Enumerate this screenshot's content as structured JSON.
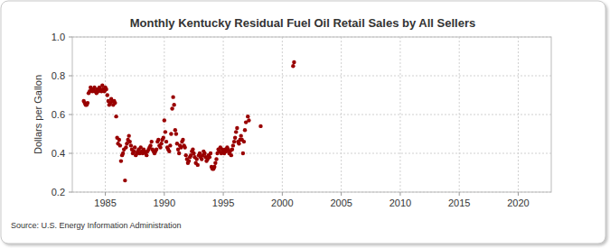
{
  "chart_data": {
    "type": "scatter",
    "title": "Monthly Kentucky Residual Fuel Oil Retail Sales by All Sellers",
    "y_label": "Dollars per Gallon",
    "source": "Source: U.S. Energy Information Administration",
    "color": "#990000",
    "marker": "circle",
    "grid": true,
    "xlim": [
      1982.2,
      2022.8
    ],
    "xticks": [
      1985,
      1990,
      1995,
      2000,
      2005,
      2010,
      2015,
      2020
    ],
    "ylim": [
      0.2,
      1.0
    ],
    "yticks": [
      0.2,
      0.4,
      0.6,
      0.8,
      {
        "value": 1,
        "label": "1.0"
      }
    ],
    "x": [
      1983.17,
      1983.25,
      1983.33,
      1983.42,
      1983.5,
      1983.58,
      1983.67,
      1983.75,
      1983.83,
      1983.92,
      1984.0,
      1984.08,
      1984.17,
      1984.25,
      1984.33,
      1984.42,
      1984.5,
      1984.58,
      1984.67,
      1984.75,
      1984.83,
      1984.92,
      1985.0,
      1985.08,
      1985.17,
      1985.25,
      1985.33,
      1985.42,
      1985.5,
      1985.58,
      1985.67,
      1985.75,
      1985.83,
      1985.92,
      1986.0,
      1986.08,
      1986.17,
      1986.25,
      1986.33,
      1986.42,
      1986.5,
      1986.58,
      1986.67,
      1986.75,
      1986.83,
      1986.92,
      1987.0,
      1987.08,
      1987.17,
      1987.25,
      1987.33,
      1987.42,
      1987.5,
      1987.58,
      1987.67,
      1987.75,
      1987.83,
      1987.92,
      1988.0,
      1988.08,
      1988.17,
      1988.25,
      1988.33,
      1988.42,
      1988.5,
      1988.58,
      1988.67,
      1988.75,
      1988.83,
      1988.92,
      1989.0,
      1989.08,
      1989.17,
      1989.25,
      1989.33,
      1989.42,
      1989.5,
      1989.58,
      1989.67,
      1989.75,
      1989.83,
      1989.92,
      1990.0,
      1990.08,
      1990.17,
      1990.25,
      1990.33,
      1990.42,
      1990.5,
      1990.58,
      1990.67,
      1990.75,
      1990.83,
      1990.92,
      1991.0,
      1991.08,
      1991.17,
      1991.25,
      1991.33,
      1991.42,
      1991.5,
      1991.58,
      1991.67,
      1991.75,
      1991.83,
      1991.92,
      1992.0,
      1992.08,
      1992.17,
      1992.25,
      1992.33,
      1992.42,
      1992.5,
      1992.58,
      1992.67,
      1992.75,
      1992.83,
      1992.92,
      1993.0,
      1993.08,
      1993.17,
      1993.25,
      1993.33,
      1993.42,
      1993.5,
      1993.58,
      1993.67,
      1993.75,
      1993.83,
      1993.92,
      1994.0,
      1994.08,
      1994.17,
      1994.25,
      1994.33,
      1994.42,
      1994.5,
      1994.58,
      1994.67,
      1994.75,
      1994.83,
      1994.92,
      1995.0,
      1995.08,
      1995.17,
      1995.25,
      1995.33,
      1995.42,
      1995.5,
      1995.58,
      1995.67,
      1995.75,
      1995.83,
      1995.92,
      1996.0,
      1996.08,
      1996.17,
      1996.25,
      1996.33,
      1996.42,
      1996.5,
      1996.58,
      1996.67,
      1996.75,
      1996.83,
      1996.92,
      1997.08,
      1997.17,
      1998.17,
      2000.92,
      2001.0
    ],
    "values": [
      0.67,
      0.66,
      0.65,
      0.65,
      0.66,
      0.71,
      0.72,
      0.74,
      0.73,
      0.72,
      0.73,
      0.74,
      0.72,
      0.71,
      0.73,
      0.72,
      0.74,
      0.73,
      0.72,
      0.75,
      0.73,
      0.72,
      0.74,
      0.73,
      0.7,
      0.67,
      0.65,
      0.66,
      0.68,
      0.67,
      0.65,
      0.67,
      0.66,
      0.59,
      0.48,
      0.45,
      0.47,
      0.44,
      0.36,
      0.39,
      0.4,
      0.42,
      0.26,
      0.43,
      0.45,
      0.47,
      0.49,
      0.46,
      0.44,
      0.42,
      0.4,
      0.41,
      0.43,
      0.39,
      0.4,
      0.41,
      0.42,
      0.4,
      0.43,
      0.41,
      0.4,
      0.42,
      0.41,
      0.4,
      0.39,
      0.41,
      0.42,
      0.43,
      0.44,
      0.46,
      0.42,
      0.41,
      0.4,
      0.41,
      0.42,
      0.46,
      0.47,
      0.44,
      0.43,
      0.45,
      0.47,
      0.48,
      0.57,
      0.51,
      0.46,
      0.43,
      0.42,
      0.41,
      0.44,
      0.5,
      0.63,
      0.69,
      0.65,
      0.52,
      0.5,
      0.45,
      0.42,
      0.4,
      0.44,
      0.43,
      0.46,
      0.47,
      0.44,
      0.43,
      0.39,
      0.37,
      0.35,
      0.36,
      0.38,
      0.39,
      0.41,
      0.42,
      0.4,
      0.38,
      0.35,
      0.37,
      0.34,
      0.39,
      0.4,
      0.38,
      0.37,
      0.39,
      0.41,
      0.4,
      0.38,
      0.36,
      0.37,
      0.39,
      0.38,
      0.4,
      0.33,
      0.32,
      0.32,
      0.33,
      0.35,
      0.37,
      0.4,
      0.42,
      0.41,
      0.43,
      0.4,
      0.42,
      0.41,
      0.4,
      0.42,
      0.41,
      0.43,
      0.42,
      0.4,
      0.41,
      0.39,
      0.42,
      0.44,
      0.46,
      0.48,
      0.51,
      0.53,
      0.46,
      0.45,
      0.47,
      0.49,
      0.47,
      0.4,
      0.46,
      0.52,
      0.56,
      0.59,
      0.57,
      0.54,
      0.85,
      0.87
    ]
  }
}
